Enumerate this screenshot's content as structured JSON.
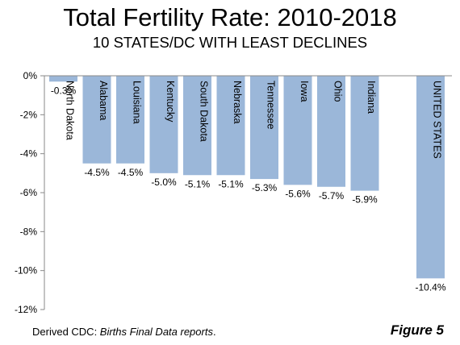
{
  "chart_data": {
    "type": "bar",
    "title": "Total Fertility Rate: 2010-2018",
    "subtitle": "10 STATES/DC WITH LEAST DECLINES",
    "categories": [
      "North Dakota",
      "Alabama",
      "Louisiana",
      "Kentucky",
      "South Dakota",
      "Nebraska",
      "Tennessee",
      "Iowa",
      "Ohio",
      "Indiana",
      "UNITED STATES"
    ],
    "values": [
      -0.3,
      -4.5,
      -4.5,
      -5.0,
      -5.1,
      -5.1,
      -5.3,
      -5.6,
      -5.7,
      -5.9,
      -10.4
    ],
    "data_labels": [
      "-0.3%",
      "-4.5%",
      "-4.5%",
      "-5.0%",
      "-5.1%",
      "-5.1%",
      "-5.3%",
      "-5.6%",
      "-5.7%",
      "-5.9%",
      "-10.4%"
    ],
    "ylim": [
      -12,
      0
    ],
    "yticks": [
      0,
      -2,
      -4,
      -6,
      -8,
      -10,
      -12
    ],
    "ytick_labels": [
      "0%",
      "-2%",
      "-4%",
      "-6%",
      "-8%",
      "-10%",
      "-12%"
    ],
    "xlabel": "",
    "ylabel": "",
    "grid": false,
    "legend": "none",
    "bar_color": "#9bb7d9",
    "gap_after_index": 9
  },
  "footer": {
    "source_prefix": "Derived  CDC: ",
    "source_italic": "Births Final Data reports",
    "source_suffix": ".",
    "figure_label": "Figure 5"
  }
}
